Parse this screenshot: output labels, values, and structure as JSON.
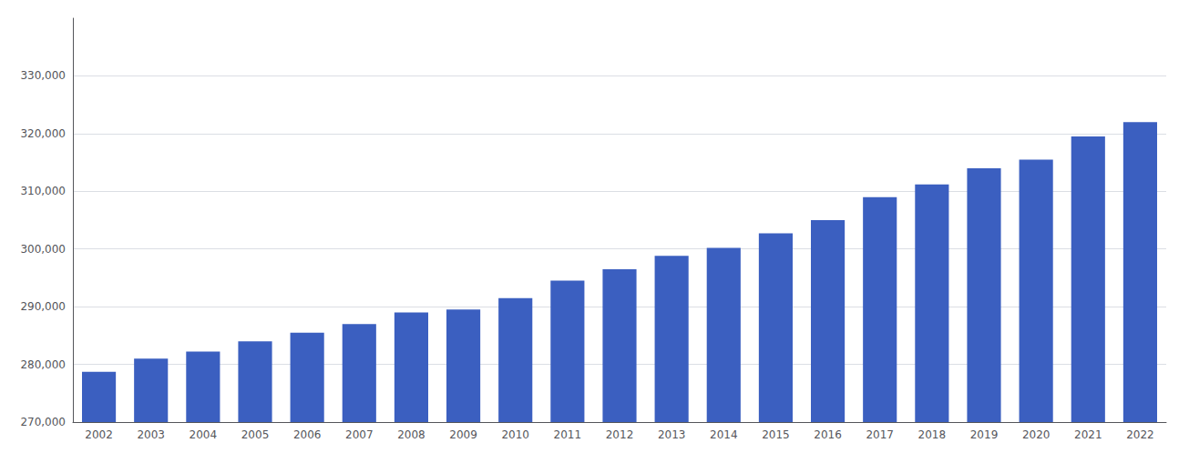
{
  "chart_data": {
    "type": "bar",
    "categories": [
      "2002",
      "2003",
      "2004",
      "2005",
      "2006",
      "2007",
      "2008",
      "2009",
      "2010",
      "2011",
      "2012",
      "2013",
      "2014",
      "2015",
      "2016",
      "2017",
      "2018",
      "2019",
      "2020",
      "2021",
      "2022"
    ],
    "values": [
      278700,
      281000,
      282200,
      284000,
      285500,
      287000,
      289000,
      289500,
      291500,
      294500,
      296500,
      298800,
      300200,
      302700,
      305000,
      309000,
      311200,
      314000,
      315500,
      319500,
      322000
    ],
    "color": "#3b5fc0",
    "ylim": [
      270000,
      340000
    ],
    "yticks": [
      {
        "value": 270000,
        "label": "270,000"
      },
      {
        "value": 280000,
        "label": "280,000"
      },
      {
        "value": 290000,
        "label": "290,000"
      },
      {
        "value": 300000,
        "label": "300,000"
      },
      {
        "value": 310000,
        "label": "310,000"
      },
      {
        "value": 320000,
        "label": "320,000"
      },
      {
        "value": 330000,
        "label": "330,000"
      }
    ],
    "grid": true
  }
}
